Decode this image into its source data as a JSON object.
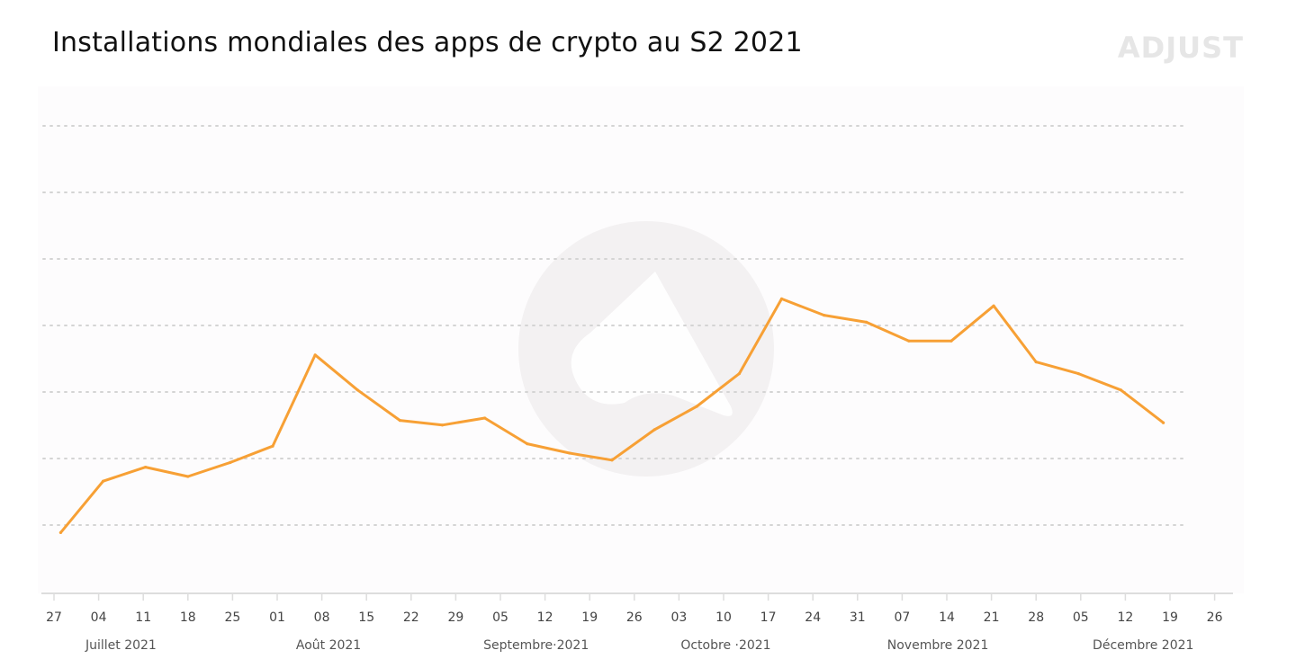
{
  "title": "Installations mondiales des apps de crypto au S2 2021",
  "brand": {
    "name": "ADJUST",
    "color": "#e6e6e6"
  },
  "colors": {
    "line": "#f7a035",
    "grid": "#d4d4d4",
    "axis": "#dddddd",
    "watermark": "#f3f1f2",
    "background_panel": "#fdfcfd"
  },
  "chart_data": {
    "type": "line",
    "title": "Installations mondiales des apps de crypto au S2 2021",
    "xlabel": "",
    "ylabel": "",
    "y_ticks_labeled": false,
    "ylim": [
      0,
      100
    ],
    "grid": "horizontal dotted",
    "legend": "none",
    "x_tick_labels": [
      "27",
      "04",
      "11",
      "18",
      "25",
      "01",
      "08",
      "15",
      "22",
      "29",
      "05",
      "12",
      "19",
      "26",
      "03",
      "10",
      "17",
      "24",
      "31",
      "07",
      "14",
      "21",
      "28",
      "05",
      "12",
      "19",
      "26"
    ],
    "month_labels": [
      {
        "label": "Juillet  2021",
        "tick_index": 1.5
      },
      {
        "label": "Août  2021",
        "tick_index": 6.15
      },
      {
        "label": "Septembre·2021",
        "tick_index": 10.8
      },
      {
        "label": "Octobre  ·2021",
        "tick_index": 15.05
      },
      {
        "label": "Novembre  2021",
        "tick_index": 19.8
      },
      {
        "label": "Décembre  2021",
        "tick_index": 24.4
      }
    ],
    "series": [
      {
        "x": [
          0.15,
          1.1,
          2.05,
          3.0,
          3.95,
          4.9,
          5.85,
          6.8,
          7.75,
          8.7,
          9.65,
          10.6,
          11.55,
          12.5,
          13.45,
          14.4,
          15.35,
          16.3,
          17.25,
          18.2,
          19.15,
          20.1,
          21.05,
          22.0,
          22.95,
          23.9,
          24.85
        ],
        "values": [
          13,
          24,
          27,
          25,
          28,
          31.5,
          51,
          43.5,
          37,
          36,
          37.5,
          32,
          30,
          28.5,
          35,
          40,
          47,
          63,
          59.5,
          58,
          54,
          54,
          61.5,
          49.5,
          47,
          43.5,
          36.5
        ]
      }
    ]
  }
}
